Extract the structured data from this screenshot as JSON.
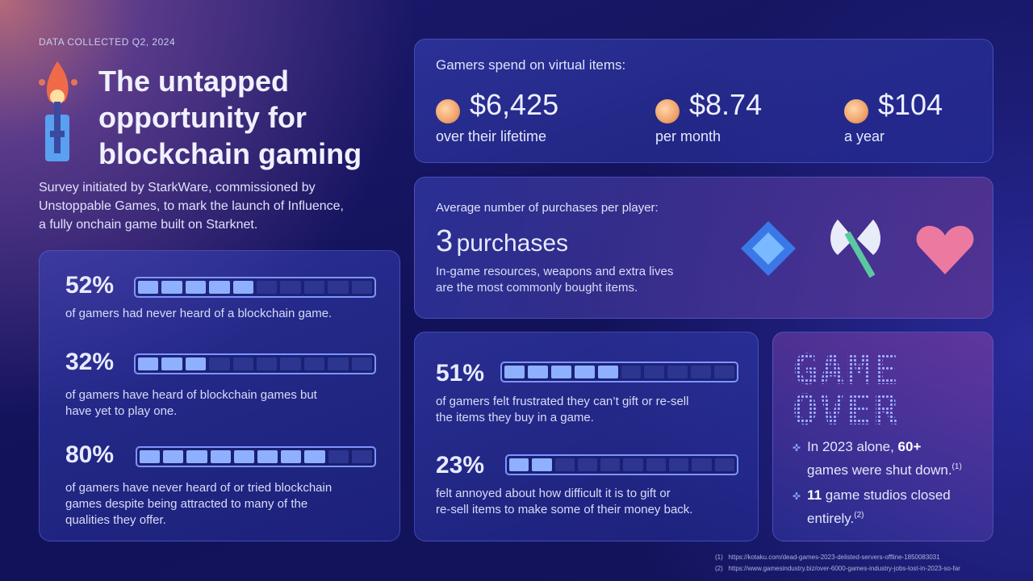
{
  "header": {
    "kicker": "DATA COLLECTED Q2, 2024",
    "title_lines": [
      "The untapped",
      "opportunity for",
      "blockchain gaming"
    ],
    "subtitle_lines": [
      "Survey initiated by StarkWare, commissioned by",
      "Unstoppable Games, to mark the launch of Influence,",
      "a fully onchain game built on Starknet."
    ]
  },
  "awareness": [
    {
      "percent_label": "52%",
      "percent": 52,
      "text_lines": [
        "of gamers had never heard of a blockchain game."
      ]
    },
    {
      "percent_label": "32%",
      "percent": 32,
      "text_lines": [
        "of gamers have heard of blockchain games but",
        "have yet to play one."
      ]
    },
    {
      "percent_label": "80%",
      "percent": 80,
      "text_lines": [
        "of gamers have never heard of or tried blockchain",
        "games despite being attracted to many of the",
        "qualities they offer."
      ]
    }
  ],
  "spending": {
    "heading": "Gamers spend on virtual items:",
    "items": [
      {
        "value": "$6,425",
        "caption": "over their lifetime"
      },
      {
        "value": "$8.74",
        "caption": "per month"
      },
      {
        "value": "$104",
        "caption": "a year"
      }
    ]
  },
  "purchases": {
    "heading": "Average number of purchases per player:",
    "number": "3",
    "unit": "purchases",
    "text_lines": [
      "In-game resources, weapons and extra lives",
      "are the most commonly bought items."
    ],
    "icons": [
      "gem-icon",
      "axe-icon",
      "heart-icon"
    ]
  },
  "frustration": [
    {
      "percent_label": "51%",
      "percent": 51,
      "text_lines": [
        "of gamers felt frustrated they can’t gift or re-sell",
        "the items they buy in a game."
      ]
    },
    {
      "percent_label": "23%",
      "percent": 23,
      "text_lines": [
        "felt annoyed about how difficult it is to gift or",
        "re-sell items to make some of their money back."
      ]
    }
  ],
  "game_over": {
    "lines": [
      "GAME",
      "OVER"
    ],
    "bullets": [
      {
        "pre": "In 2023 alone, ",
        "bold": "60+",
        "line2": "games were shut down.",
        "ref": "(1)"
      },
      {
        "pre": "",
        "bold": "11",
        "post": " game studios closed",
        "line2": "entirely.",
        "ref": "(2)"
      }
    ]
  },
  "footnotes": [
    {
      "num": "(1)",
      "url": "https://kotaku.com/dead-games-2023-delisted-servers-offline-1850083031"
    },
    {
      "num": "(2)",
      "url": "https://www.gamesindustry.biz/over-6000-games-industry-jobs-lost-in-2023-so-far"
    }
  ],
  "colors": {
    "bar_on": "#8fb0ff",
    "bar_off": "#2c3590",
    "coin": "#f0a36a"
  }
}
